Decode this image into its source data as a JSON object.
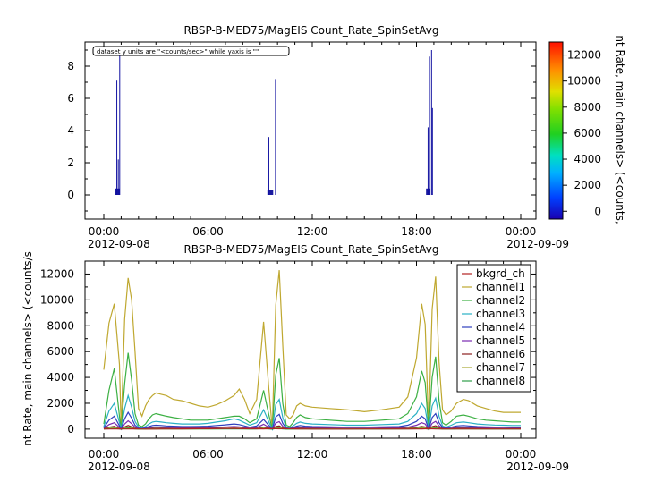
{
  "chart_data": [
    {
      "type": "scatter",
      "title": "RBSP-B-MED75/MagEIS  Count_Rate_SpinSetAvg",
      "ylabel": "",
      "xlabel": "",
      "annotation": "dataset y units are \"<counts/sec>\" while yaxis is \"\"",
      "ylim": [
        -1.5,
        9.5
      ],
      "yticks": [
        "0",
        "2",
        "4",
        "6",
        "8"
      ],
      "xlim": [
        "2012-09-08T00:00",
        "2012-09-09T00:00"
      ],
      "xticks": [
        "00:00",
        "06:00",
        "12:00",
        "18:00",
        "00:00"
      ],
      "xdates": [
        "2012-09-08",
        "2012-09-09"
      ],
      "spikes": [
        {
          "x": "2012-09-08T00:45",
          "y": 7.1
        },
        {
          "x": "2012-09-08T00:50",
          "y": 2.2
        },
        {
          "x": "2012-09-08T00:55",
          "y": 9.0
        },
        {
          "x": "2012-09-08T09:30",
          "y": 3.6
        },
        {
          "x": "2012-09-08T09:53",
          "y": 7.2
        },
        {
          "x": "2012-09-08T18:40",
          "y": 4.2
        },
        {
          "x": "2012-09-08T18:45",
          "y": 8.6
        },
        {
          "x": "2012-09-08T18:52",
          "y": 9.0
        },
        {
          "x": "2012-09-08T18:55",
          "y": 5.4
        }
      ],
      "clusters": [
        {
          "x0": "2012-09-08T00:40",
          "x1": "2012-09-08T00:55",
          "y0": 0,
          "y1": 0.4
        },
        {
          "x0": "2012-09-08T09:25",
          "x1": "2012-09-08T09:45",
          "y0": 0,
          "y1": 0.3
        },
        {
          "x0": "2012-09-08T18:33",
          "x1": "2012-09-08T18:48",
          "y0": 0,
          "y1": 0.4
        }
      ],
      "colorbar": {
        "ylabel": "nt Rate, main channels> (<counts,",
        "ticks": [
          "0",
          "2000",
          "4000",
          "6000",
          "8000",
          "10000",
          "12000"
        ],
        "range": [
          -600,
          13000
        ]
      }
    },
    {
      "type": "line",
      "title": "RBSP-B-MED75/MagEIS  Count_Rate_SpinSetAvg",
      "ylabel": "nt Rate, main channels> (<counts/s",
      "xlabel": "",
      "ylim": [
        -700,
        13000
      ],
      "yticks": [
        "0",
        "2000",
        "4000",
        "6000",
        "8000",
        "10000",
        "12000"
      ],
      "xlim": [
        "2012-09-08T00:00",
        "2012-09-09T00:00"
      ],
      "xticks": [
        "00:00",
        "06:00",
        "12:00",
        "18:00",
        "00:00"
      ],
      "xdates": [
        "2012-09-08",
        "2012-09-09"
      ],
      "x_hours": [
        0,
        0.3,
        0.6,
        0.9,
        1.0,
        1.2,
        1.4,
        1.6,
        1.8,
        2.0,
        2.2,
        2.4,
        2.6,
        2.8,
        3.0,
        3.3,
        3.6,
        4.0,
        4.5,
        5.0,
        5.5,
        6.0,
        6.5,
        7.0,
        7.5,
        7.8,
        8.1,
        8.4,
        8.8,
        9.2,
        9.5,
        9.7,
        9.9,
        10.1,
        10.3,
        10.5,
        10.7,
        10.9,
        11.1,
        11.3,
        11.6,
        12,
        13,
        14,
        15,
        16,
        17,
        17.5,
        18.0,
        18.3,
        18.5,
        18.7,
        18.9,
        19.1,
        19.3,
        19.5,
        19.7,
        20.0,
        20.3,
        20.7,
        21,
        21.5,
        22,
        22.5,
        23,
        23.5,
        24
      ],
      "series": [
        {
          "name": "bkgrd_ch",
          "color": "#b22222",
          "values": [
            10,
            10,
            15,
            20,
            10,
            10,
            15,
            25,
            20,
            15,
            10,
            5,
            5,
            5,
            5,
            10,
            10,
            15,
            20,
            25,
            30,
            35,
            40,
            45,
            45,
            40,
            35,
            30,
            25,
            20,
            30,
            40,
            35,
            25,
            30,
            35,
            30,
            25,
            20,
            15,
            10,
            5,
            5,
            5,
            10,
            10,
            10,
            10,
            15,
            20,
            25,
            30,
            25,
            15,
            10,
            10,
            10,
            10,
            10,
            10,
            10,
            10,
            10,
            10,
            10,
            10,
            10
          ]
        },
        {
          "name": "channel1",
          "color": "#bfa830",
          "values": [
            4600,
            8200,
            9700,
            5000,
            0,
            8500,
            11700,
            10000,
            6000,
            1600,
            1000,
            1800,
            2300,
            2600,
            2800,
            2700,
            2600,
            2300,
            2200,
            2000,
            1800,
            1700,
            1900,
            2200,
            2600,
            3100,
            2300,
            1200,
            2300,
            8300,
            3100,
            0,
            9600,
            12300,
            6500,
            1100,
            800,
            1100,
            1800,
            2000,
            1800,
            1700,
            1600,
            1500,
            1350,
            1500,
            1700,
            2500,
            5500,
            9700,
            8100,
            0,
            9300,
            11800,
            5200,
            1500,
            1100,
            1400,
            2000,
            2300,
            2200,
            1800,
            1600,
            1400,
            1300,
            1300,
            1300
          ]
        },
        {
          "name": "channel2",
          "color": "#3cb043",
          "values": [
            400,
            3000,
            4700,
            1000,
            0,
            3500,
            5900,
            3800,
            1200,
            300,
            200,
            400,
            800,
            1100,
            1200,
            1100,
            1000,
            900,
            800,
            700,
            700,
            700,
            800,
            900,
            1000,
            1000,
            800,
            500,
            800,
            3000,
            1100,
            0,
            4200,
            5500,
            2000,
            300,
            200,
            500,
            900,
            1100,
            900,
            800,
            700,
            600,
            600,
            700,
            800,
            1200,
            2500,
            4500,
            3600,
            0,
            4000,
            5600,
            2200,
            500,
            300,
            600,
            1000,
            1100,
            1000,
            800,
            700,
            650,
            600,
            550,
            550
          ]
        },
        {
          "name": "channel3",
          "color": "#2ab0c4",
          "values": [
            200,
            1400,
            2000,
            500,
            0,
            1600,
            2600,
            1700,
            600,
            150,
            100,
            200,
            400,
            550,
            600,
            550,
            500,
            450,
            400,
            400,
            400,
            450,
            550,
            650,
            800,
            700,
            500,
            300,
            500,
            1500,
            550,
            0,
            1900,
            2300,
            900,
            150,
            100,
            250,
            450,
            550,
            450,
            400,
            350,
            300,
            300,
            350,
            400,
            600,
            1200,
            2000,
            1600,
            0,
            1800,
            2400,
            1000,
            250,
            150,
            300,
            500,
            550,
            500,
            400,
            350,
            320,
            300,
            280,
            280
          ]
        },
        {
          "name": "channel4",
          "color": "#2f3fbf",
          "values": [
            100,
            700,
            1000,
            250,
            0,
            800,
            1300,
            850,
            300,
            80,
            50,
            100,
            200,
            280,
            300,
            280,
            250,
            230,
            200,
            200,
            210,
            230,
            280,
            330,
            400,
            350,
            250,
            150,
            250,
            750,
            280,
            0,
            950,
            1150,
            450,
            80,
            50,
            130,
            230,
            280,
            230,
            200,
            180,
            150,
            150,
            180,
            200,
            300,
            600,
            1000,
            800,
            0,
            900,
            1200,
            500,
            130,
            80,
            150,
            250,
            280,
            250,
            200,
            180,
            160,
            150,
            140,
            140
          ]
        },
        {
          "name": "channel5",
          "color": "#7a2ab0",
          "values": [
            50,
            350,
            500,
            120,
            0,
            400,
            650,
            420,
            150,
            40,
            25,
            50,
            100,
            140,
            150,
            140,
            125,
            115,
            100,
            100,
            105,
            115,
            140,
            165,
            200,
            175,
            125,
            75,
            125,
            380,
            140,
            0,
            470,
            580,
            220,
            40,
            25,
            65,
            115,
            140,
            115,
            100,
            90,
            75,
            75,
            90,
            100,
            150,
            300,
            500,
            400,
            0,
            450,
            600,
            250,
            65,
            40,
            75,
            125,
            140,
            125,
            100,
            90,
            80,
            75,
            70,
            70
          ]
        },
        {
          "name": "channel6",
          "color": "#8b2020",
          "values": [
            20,
            150,
            220,
            50,
            0,
            170,
            280,
            180,
            60,
            15,
            10,
            20,
            40,
            60,
            65,
            60,
            55,
            50,
            45,
            45,
            45,
            50,
            60,
            70,
            85,
            75,
            55,
            30,
            55,
            160,
            60,
            0,
            200,
            250,
            95,
            15,
            10,
            30,
            50,
            60,
            50,
            45,
            40,
            35,
            35,
            40,
            45,
            65,
            130,
            210,
            170,
            0,
            190,
            260,
            110,
            30,
            15,
            30,
            55,
            60,
            55,
            45,
            40,
            35,
            35,
            30,
            30
          ]
        },
        {
          "name": "channel7",
          "color": "#a8a832",
          "values": [
            10,
            70,
            100,
            25,
            0,
            80,
            130,
            85,
            30,
            8,
            5,
            10,
            20,
            28,
            30,
            28,
            25,
            23,
            20,
            20,
            21,
            23,
            28,
            33,
            40,
            35,
            25,
            15,
            25,
            75,
            28,
            0,
            95,
            115,
            45,
            8,
            5,
            13,
            23,
            28,
            23,
            20,
            18,
            15,
            15,
            18,
            20,
            30,
            60,
            100,
            80,
            0,
            90,
            120,
            50,
            13,
            8,
            15,
            25,
            28,
            25,
            20,
            18,
            16,
            15,
            14,
            14
          ]
        },
        {
          "name": "channel8",
          "color": "#2e9e4a",
          "values": [
            5,
            35,
            50,
            12,
            0,
            40,
            65,
            42,
            15,
            4,
            3,
            5,
            10,
            14,
            15,
            14,
            13,
            12,
            10,
            10,
            11,
            12,
            14,
            17,
            20,
            18,
            13,
            8,
            13,
            38,
            14,
            0,
            47,
            58,
            22,
            4,
            3,
            7,
            12,
            14,
            12,
            10,
            9,
            8,
            8,
            9,
            10,
            15,
            30,
            50,
            40,
            0,
            45,
            60,
            25,
            7,
            4,
            8,
            13,
            14,
            13,
            10,
            9,
            8,
            8,
            7,
            7
          ]
        }
      ]
    }
  ]
}
